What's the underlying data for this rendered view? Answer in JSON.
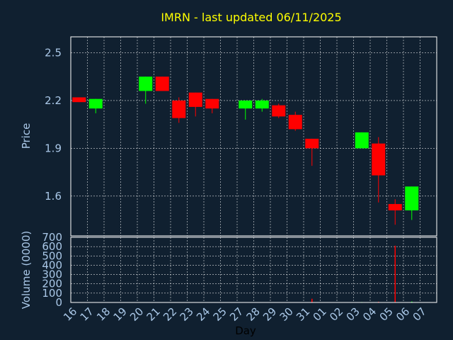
{
  "chart_data": [
    {
      "type": "candlestick",
      "title": "IMRN - last updated 06/11/2025",
      "ylabel": "Price",
      "ylim": [
        1.35,
        2.6
      ],
      "yticks": [
        "1.6",
        "1.9",
        "2.2",
        "2.5"
      ],
      "up_color": "#00ff00",
      "down_color": "#ff0000",
      "grid": true,
      "candles": [
        {
          "day": "16",
          "open": 2.22,
          "close": 2.19,
          "high": 2.22,
          "low": 2.19
        },
        {
          "day": "17",
          "open": 2.15,
          "close": 2.21,
          "high": 2.21,
          "low": 2.12
        },
        {
          "day": "20",
          "open": 2.26,
          "close": 2.35,
          "high": 2.35,
          "low": 2.18
        },
        {
          "day": "21",
          "open": 2.35,
          "close": 2.26,
          "high": 2.35,
          "low": 2.26
        },
        {
          "day": "22",
          "open": 2.2,
          "close": 2.09,
          "high": 2.22,
          "low": 2.06
        },
        {
          "day": "23",
          "open": 2.25,
          "close": 2.16,
          "high": 2.25,
          "low": 2.1
        },
        {
          "day": "24",
          "open": 2.21,
          "close": 2.15,
          "high": 2.21,
          "low": 2.12
        },
        {
          "day": "27",
          "open": 2.15,
          "close": 2.2,
          "high": 2.2,
          "low": 2.08
        },
        {
          "day": "28",
          "open": 2.15,
          "close": 2.2,
          "high": 2.21,
          "low": 2.13
        },
        {
          "day": "29",
          "open": 2.17,
          "close": 2.1,
          "high": 2.18,
          "low": 2.09
        },
        {
          "day": "30",
          "open": 2.11,
          "close": 2.02,
          "high": 2.13,
          "low": 2.01
        },
        {
          "day": "31",
          "open": 1.96,
          "close": 1.9,
          "high": 1.96,
          "low": 1.79
        },
        {
          "day": "03",
          "open": 1.9,
          "close": 2.0,
          "high": 2.0,
          "low": 1.9
        },
        {
          "day": "04",
          "open": 1.93,
          "close": 1.73,
          "high": 1.97,
          "low": 1.56
        },
        {
          "day": "05",
          "open": 1.55,
          "close": 1.51,
          "high": 1.58,
          "low": 1.42
        },
        {
          "day": "06",
          "open": 1.51,
          "close": 1.66,
          "high": 1.66,
          "low": 1.45
        }
      ]
    },
    {
      "type": "bar",
      "ylabel": "Volume (0000)",
      "ylim": [
        0,
        700
      ],
      "yticks": [
        "0",
        "100",
        "200",
        "300",
        "400",
        "500",
        "600",
        "700"
      ],
      "xlabel": "Day",
      "categories": [
        "16",
        "17",
        "18",
        "19",
        "20",
        "21",
        "22",
        "23",
        "24",
        "25",
        "27",
        "28",
        "29",
        "30",
        "31",
        "01",
        "02",
        "03",
        "04",
        "05",
        "06",
        "07"
      ],
      "volumes": [
        {
          "day": "16",
          "value": 2,
          "color": "#ff0000"
        },
        {
          "day": "17",
          "value": 2,
          "color": "#00ff00"
        },
        {
          "day": "20",
          "value": 2,
          "color": "#00ff00"
        },
        {
          "day": "21",
          "value": 2,
          "color": "#ff0000"
        },
        {
          "day": "22",
          "value": 2,
          "color": "#ff0000"
        },
        {
          "day": "23",
          "value": 2,
          "color": "#ff0000"
        },
        {
          "day": "24",
          "value": 2,
          "color": "#ff0000"
        },
        {
          "day": "27",
          "value": 2,
          "color": "#00ff00"
        },
        {
          "day": "28",
          "value": 2,
          "color": "#00ff00"
        },
        {
          "day": "29",
          "value": 2,
          "color": "#ff0000"
        },
        {
          "day": "30",
          "value": 2,
          "color": "#ff0000"
        },
        {
          "day": "31",
          "value": 40,
          "color": "#ff0000"
        },
        {
          "day": "03",
          "value": 5,
          "color": "#00ff00"
        },
        {
          "day": "04",
          "value": 8,
          "color": "#ff0000"
        },
        {
          "day": "05",
          "value": 610,
          "color": "#ff0000"
        },
        {
          "day": "06",
          "value": 10,
          "color": "#00ff00"
        }
      ]
    }
  ]
}
